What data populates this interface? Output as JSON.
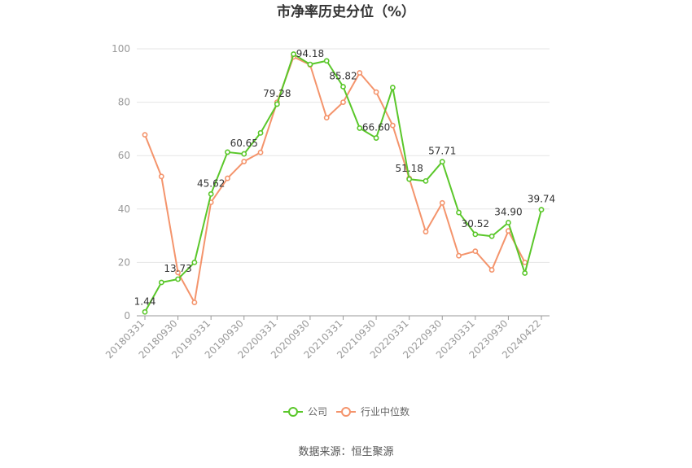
{
  "chart_data": {
    "type": "line",
    "title": "市净率历史分位（%）",
    "source": "数据来源：恒生聚源",
    "ylim": [
      0,
      100
    ],
    "yticks": [
      0,
      20,
      40,
      60,
      80,
      100
    ],
    "x_tick_labels": [
      "20180331",
      "20180930",
      "20190331",
      "20190930",
      "20200331",
      "20200930",
      "20210331",
      "20210930",
      "20220331",
      "20220930",
      "20230331",
      "20230930",
      "20240422"
    ],
    "x": [
      "20180331",
      "20180630",
      "20180930",
      "20181231",
      "20190331",
      "20190630",
      "20190930",
      "20191231",
      "20200331",
      "20200630",
      "20200930",
      "20201231",
      "20210331",
      "20210630",
      "20210930",
      "20211231",
      "20220331",
      "20220630",
      "20220930",
      "20221231",
      "20230331",
      "20230630",
      "20230930",
      "20231231",
      "20240422"
    ],
    "grid": true,
    "legend_position": "bottom",
    "series": [
      {
        "name": "公司",
        "color": "#5ac72a",
        "values": [
          1.44,
          12.5,
          13.73,
          20.0,
          45.62,
          61.3,
          60.65,
          68.5,
          79.28,
          98.0,
          94.18,
          95.5,
          85.82,
          70.3,
          66.6,
          85.5,
          51.18,
          50.5,
          57.71,
          38.7,
          30.52,
          29.8,
          34.9,
          16.0,
          39.74
        ]
      },
      {
        "name": "行业中位数",
        "color": "#f4946c",
        "values": [
          67.8,
          52.2,
          16.2,
          5.0,
          42.5,
          51.5,
          57.8,
          61.2,
          80.0,
          97.0,
          94.0,
          74.2,
          80.0,
          91.0,
          83.8,
          71.3,
          51.5,
          31.5,
          42.3,
          22.5,
          24.2,
          17.2,
          31.8,
          20.0,
          null
        ]
      }
    ],
    "data_labels": [
      {
        "series": 0,
        "index": 0,
        "text": "1.44"
      },
      {
        "series": 0,
        "index": 2,
        "text": "13.73"
      },
      {
        "series": 0,
        "index": 4,
        "text": "45.62"
      },
      {
        "series": 0,
        "index": 6,
        "text": "60.65"
      },
      {
        "series": 0,
        "index": 8,
        "text": "79.28"
      },
      {
        "series": 0,
        "index": 10,
        "text": "94.18"
      },
      {
        "series": 0,
        "index": 12,
        "text": "85.82"
      },
      {
        "series": 0,
        "index": 14,
        "text": "66.60"
      },
      {
        "series": 0,
        "index": 16,
        "text": "51.18"
      },
      {
        "series": 0,
        "index": 18,
        "text": "57.71"
      },
      {
        "series": 0,
        "index": 20,
        "text": "30.52"
      },
      {
        "series": 0,
        "index": 22,
        "text": "34.90"
      },
      {
        "series": 0,
        "index": 24,
        "text": "39.74"
      }
    ]
  }
}
